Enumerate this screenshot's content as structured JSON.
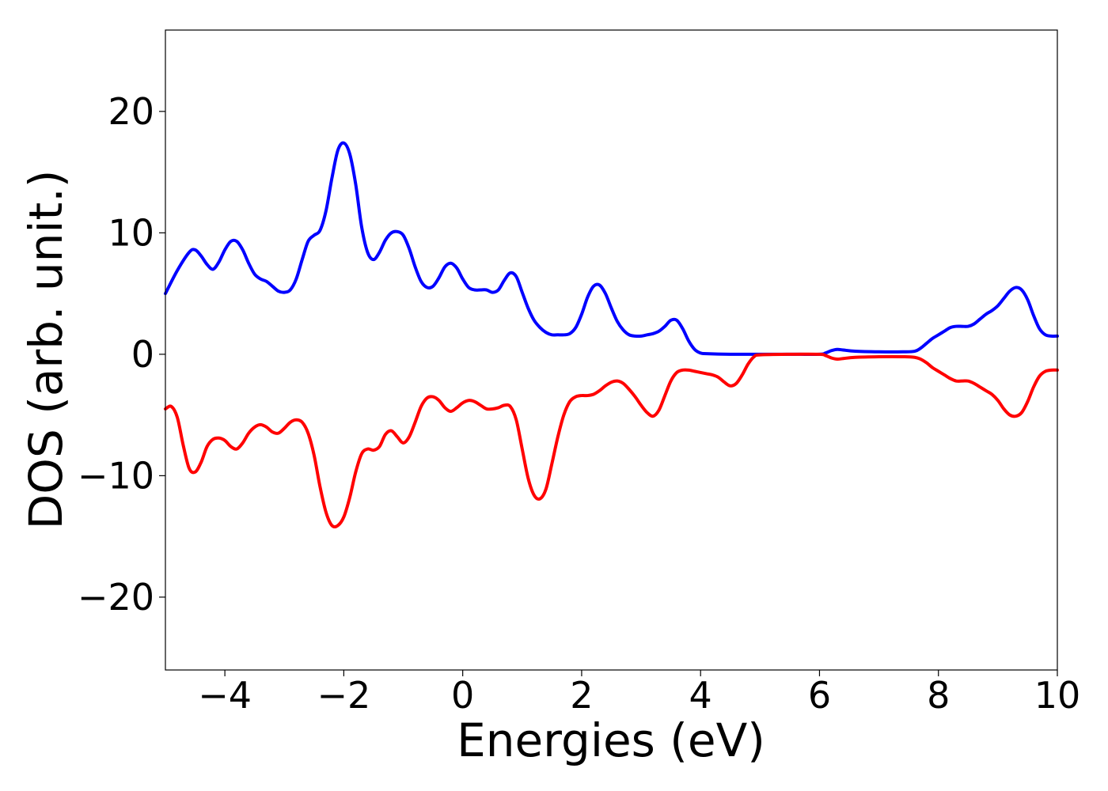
{
  "chart_data": {
    "type": "line",
    "title": "",
    "xlabel": "Energies (eV)",
    "ylabel": "DOS (arb. unit.)",
    "xlim": [
      -5,
      10
    ],
    "ylim": [
      -26,
      26.7
    ],
    "grid": false,
    "legend": "none",
    "x_ticks": [
      -4,
      -2,
      0,
      2,
      4,
      6,
      8,
      10
    ],
    "x_tick_labels": [
      "−4",
      "−2",
      "0",
      "2",
      "4",
      "6",
      "8",
      "10"
    ],
    "y_ticks": [
      20,
      10,
      0,
      -10,
      -20
    ],
    "y_tick_labels": [
      "20",
      "10",
      "0",
      "−10",
      "−20"
    ],
    "series": [
      {
        "color": "#0000ff",
        "points": [
          [
            -5.0,
            5.0
          ],
          [
            -4.8,
            6.9
          ],
          [
            -4.6,
            8.4
          ],
          [
            -4.5,
            8.6
          ],
          [
            -4.4,
            8.1
          ],
          [
            -4.3,
            7.4
          ],
          [
            -4.2,
            7.0
          ],
          [
            -4.1,
            7.6
          ],
          [
            -4.0,
            8.6
          ],
          [
            -3.9,
            9.3
          ],
          [
            -3.8,
            9.3
          ],
          [
            -3.7,
            8.6
          ],
          [
            -3.6,
            7.5
          ],
          [
            -3.5,
            6.6
          ],
          [
            -3.4,
            6.2
          ],
          [
            -3.3,
            6.0
          ],
          [
            -3.2,
            5.6
          ],
          [
            -3.1,
            5.2
          ],
          [
            -3.0,
            5.1
          ],
          [
            -2.9,
            5.3
          ],
          [
            -2.8,
            6.2
          ],
          [
            -2.7,
            7.8
          ],
          [
            -2.6,
            9.3
          ],
          [
            -2.5,
            9.8
          ],
          [
            -2.4,
            10.2
          ],
          [
            -2.3,
            11.8
          ],
          [
            -2.2,
            14.5
          ],
          [
            -2.1,
            16.8
          ],
          [
            -2.0,
            17.4
          ],
          [
            -1.9,
            16.5
          ],
          [
            -1.8,
            14.0
          ],
          [
            -1.7,
            10.5
          ],
          [
            -1.6,
            8.4
          ],
          [
            -1.5,
            7.8
          ],
          [
            -1.4,
            8.4
          ],
          [
            -1.3,
            9.4
          ],
          [
            -1.2,
            10.0
          ],
          [
            -1.1,
            10.1
          ],
          [
            -1.0,
            9.8
          ],
          [
            -0.9,
            8.7
          ],
          [
            -0.8,
            7.2
          ],
          [
            -0.7,
            6.0
          ],
          [
            -0.6,
            5.5
          ],
          [
            -0.5,
            5.6
          ],
          [
            -0.4,
            6.3
          ],
          [
            -0.3,
            7.2
          ],
          [
            -0.2,
            7.5
          ],
          [
            -0.1,
            7.1
          ],
          [
            0.0,
            6.2
          ],
          [
            0.1,
            5.5
          ],
          [
            0.2,
            5.3
          ],
          [
            0.3,
            5.3
          ],
          [
            0.4,
            5.3
          ],
          [
            0.5,
            5.1
          ],
          [
            0.6,
            5.3
          ],
          [
            0.7,
            6.1
          ],
          [
            0.8,
            6.7
          ],
          [
            0.9,
            6.4
          ],
          [
            1.0,
            5.1
          ],
          [
            1.1,
            3.8
          ],
          [
            1.2,
            2.8
          ],
          [
            1.3,
            2.2
          ],
          [
            1.4,
            1.8
          ],
          [
            1.5,
            1.6
          ],
          [
            1.6,
            1.6
          ],
          [
            1.7,
            1.6
          ],
          [
            1.8,
            1.7
          ],
          [
            1.9,
            2.2
          ],
          [
            2.0,
            3.3
          ],
          [
            2.1,
            4.7
          ],
          [
            2.2,
            5.6
          ],
          [
            2.3,
            5.7
          ],
          [
            2.4,
            5.0
          ],
          [
            2.5,
            3.8
          ],
          [
            2.6,
            2.7
          ],
          [
            2.7,
            2.0
          ],
          [
            2.8,
            1.6
          ],
          [
            2.9,
            1.5
          ],
          [
            3.0,
            1.5
          ],
          [
            3.1,
            1.6
          ],
          [
            3.2,
            1.7
          ],
          [
            3.3,
            1.9
          ],
          [
            3.4,
            2.3
          ],
          [
            3.5,
            2.8
          ],
          [
            3.6,
            2.8
          ],
          [
            3.7,
            2.1
          ],
          [
            3.8,
            1.1
          ],
          [
            3.9,
            0.4
          ],
          [
            4.0,
            0.1
          ],
          [
            4.1,
            0.05
          ],
          [
            4.5,
            0.0
          ],
          [
            5.0,
            0.0
          ],
          [
            5.5,
            0.0
          ],
          [
            6.0,
            0.0
          ],
          [
            6.1,
            0.1
          ],
          [
            6.2,
            0.3
          ],
          [
            6.3,
            0.4
          ],
          [
            6.4,
            0.35
          ],
          [
            6.6,
            0.25
          ],
          [
            7.0,
            0.2
          ],
          [
            7.4,
            0.2
          ],
          [
            7.6,
            0.25
          ],
          [
            7.7,
            0.5
          ],
          [
            7.8,
            0.9
          ],
          [
            7.9,
            1.3
          ],
          [
            8.0,
            1.6
          ],
          [
            8.1,
            1.9
          ],
          [
            8.2,
            2.2
          ],
          [
            8.3,
            2.3
          ],
          [
            8.4,
            2.3
          ],
          [
            8.5,
            2.3
          ],
          [
            8.6,
            2.5
          ],
          [
            8.7,
            2.9
          ],
          [
            8.8,
            3.3
          ],
          [
            8.9,
            3.6
          ],
          [
            9.0,
            4.0
          ],
          [
            9.1,
            4.6
          ],
          [
            9.2,
            5.2
          ],
          [
            9.3,
            5.5
          ],
          [
            9.4,
            5.3
          ],
          [
            9.5,
            4.5
          ],
          [
            9.6,
            3.2
          ],
          [
            9.7,
            2.1
          ],
          [
            9.8,
            1.6
          ],
          [
            9.9,
            1.5
          ],
          [
            10.0,
            1.5
          ]
        ]
      },
      {
        "color": "#ff0000",
        "points": [
          [
            -5.0,
            -4.5
          ],
          [
            -4.9,
            -4.3
          ],
          [
            -4.8,
            -5.2
          ],
          [
            -4.7,
            -7.5
          ],
          [
            -4.6,
            -9.4
          ],
          [
            -4.5,
            -9.7
          ],
          [
            -4.4,
            -8.9
          ],
          [
            -4.3,
            -7.6
          ],
          [
            -4.2,
            -7.0
          ],
          [
            -4.1,
            -6.9
          ],
          [
            -4.0,
            -7.1
          ],
          [
            -3.9,
            -7.6
          ],
          [
            -3.8,
            -7.8
          ],
          [
            -3.7,
            -7.3
          ],
          [
            -3.6,
            -6.5
          ],
          [
            -3.5,
            -6.0
          ],
          [
            -3.4,
            -5.8
          ],
          [
            -3.3,
            -6.0
          ],
          [
            -3.2,
            -6.4
          ],
          [
            -3.1,
            -6.5
          ],
          [
            -3.0,
            -6.1
          ],
          [
            -2.9,
            -5.6
          ],
          [
            -2.8,
            -5.4
          ],
          [
            -2.7,
            -5.6
          ],
          [
            -2.6,
            -6.5
          ],
          [
            -2.5,
            -8.3
          ],
          [
            -2.4,
            -10.9
          ],
          [
            -2.3,
            -13.0
          ],
          [
            -2.2,
            -14.1
          ],
          [
            -2.1,
            -14.1
          ],
          [
            -2.0,
            -13.4
          ],
          [
            -1.9,
            -11.8
          ],
          [
            -1.8,
            -9.7
          ],
          [
            -1.7,
            -8.2
          ],
          [
            -1.6,
            -7.8
          ],
          [
            -1.5,
            -7.9
          ],
          [
            -1.4,
            -7.6
          ],
          [
            -1.3,
            -6.6
          ],
          [
            -1.2,
            -6.3
          ],
          [
            -1.1,
            -6.8
          ],
          [
            -1.0,
            -7.3
          ],
          [
            -0.9,
            -6.8
          ],
          [
            -0.8,
            -5.6
          ],
          [
            -0.7,
            -4.3
          ],
          [
            -0.6,
            -3.6
          ],
          [
            -0.5,
            -3.5
          ],
          [
            -0.4,
            -3.8
          ],
          [
            -0.3,
            -4.4
          ],
          [
            -0.2,
            -4.7
          ],
          [
            -0.1,
            -4.4
          ],
          [
            0.0,
            -4.0
          ],
          [
            0.1,
            -3.8
          ],
          [
            0.2,
            -3.9
          ],
          [
            0.3,
            -4.2
          ],
          [
            0.4,
            -4.5
          ],
          [
            0.5,
            -4.5
          ],
          [
            0.6,
            -4.4
          ],
          [
            0.7,
            -4.2
          ],
          [
            0.8,
            -4.3
          ],
          [
            0.9,
            -5.4
          ],
          [
            1.0,
            -7.8
          ],
          [
            1.1,
            -10.2
          ],
          [
            1.2,
            -11.6
          ],
          [
            1.3,
            -11.9
          ],
          [
            1.4,
            -11.1
          ],
          [
            1.5,
            -9.0
          ],
          [
            1.6,
            -6.8
          ],
          [
            1.7,
            -5.0
          ],
          [
            1.8,
            -3.9
          ],
          [
            1.9,
            -3.5
          ],
          [
            2.0,
            -3.4
          ],
          [
            2.1,
            -3.4
          ],
          [
            2.2,
            -3.3
          ],
          [
            2.3,
            -3.0
          ],
          [
            2.4,
            -2.6
          ],
          [
            2.5,
            -2.3
          ],
          [
            2.6,
            -2.2
          ],
          [
            2.7,
            -2.4
          ],
          [
            2.8,
            -2.9
          ],
          [
            2.9,
            -3.5
          ],
          [
            3.0,
            -4.2
          ],
          [
            3.1,
            -4.8
          ],
          [
            3.2,
            -5.1
          ],
          [
            3.3,
            -4.6
          ],
          [
            3.4,
            -3.4
          ],
          [
            3.5,
            -2.2
          ],
          [
            3.6,
            -1.5
          ],
          [
            3.7,
            -1.3
          ],
          [
            3.8,
            -1.3
          ],
          [
            3.9,
            -1.4
          ],
          [
            4.0,
            -1.5
          ],
          [
            4.1,
            -1.6
          ],
          [
            4.2,
            -1.7
          ],
          [
            4.3,
            -1.9
          ],
          [
            4.4,
            -2.3
          ],
          [
            4.5,
            -2.6
          ],
          [
            4.6,
            -2.4
          ],
          [
            4.7,
            -1.7
          ],
          [
            4.8,
            -0.8
          ],
          [
            4.9,
            -0.2
          ],
          [
            5.0,
            -0.05
          ],
          [
            5.5,
            0.0
          ],
          [
            6.0,
            0.0
          ],
          [
            6.1,
            -0.1
          ],
          [
            6.2,
            -0.3
          ],
          [
            6.3,
            -0.4
          ],
          [
            6.4,
            -0.35
          ],
          [
            6.6,
            -0.25
          ],
          [
            7.0,
            -0.2
          ],
          [
            7.4,
            -0.2
          ],
          [
            7.6,
            -0.25
          ],
          [
            7.7,
            -0.4
          ],
          [
            7.8,
            -0.7
          ],
          [
            7.9,
            -1.1
          ],
          [
            8.0,
            -1.4
          ],
          [
            8.1,
            -1.7
          ],
          [
            8.2,
            -2.0
          ],
          [
            8.3,
            -2.2
          ],
          [
            8.4,
            -2.2
          ],
          [
            8.5,
            -2.2
          ],
          [
            8.6,
            -2.4
          ],
          [
            8.7,
            -2.7
          ],
          [
            8.8,
            -3.0
          ],
          [
            8.9,
            -3.3
          ],
          [
            9.0,
            -3.8
          ],
          [
            9.1,
            -4.5
          ],
          [
            9.2,
            -5.0
          ],
          [
            9.3,
            -5.1
          ],
          [
            9.4,
            -4.8
          ],
          [
            9.5,
            -3.9
          ],
          [
            9.6,
            -2.7
          ],
          [
            9.7,
            -1.8
          ],
          [
            9.8,
            -1.4
          ],
          [
            9.9,
            -1.3
          ],
          [
            10.0,
            -1.3
          ]
        ]
      }
    ]
  }
}
